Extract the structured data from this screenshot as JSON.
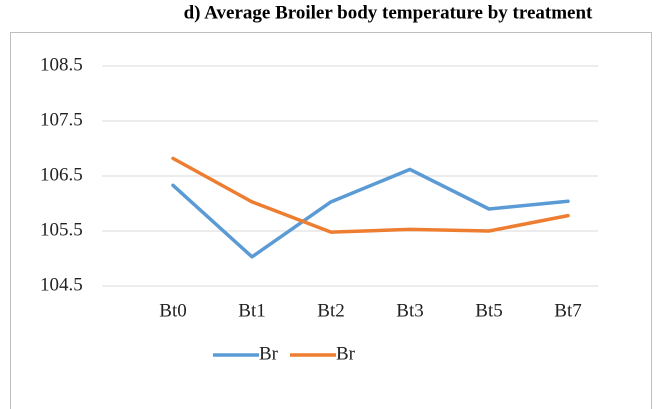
{
  "chart_data": {
    "type": "line",
    "title": "d)   Average Broiler body temperature by treatment",
    "categories": [
      "Bt0",
      "Bt1",
      "Bt2",
      "Bt3",
      "Bt5",
      "Bt7"
    ],
    "series": [
      {
        "name": "Br",
        "color": "#5b9bd5",
        "values": [
          106.33,
          105.03,
          106.03,
          106.62,
          105.9,
          106.04
        ]
      },
      {
        "name": "Br",
        "color": "#ed7d31",
        "values": [
          106.82,
          106.03,
          105.48,
          105.53,
          105.5,
          105.78
        ]
      }
    ],
    "ylim": [
      104.5,
      108.5
    ],
    "yticks": [
      104.5,
      105.5,
      106.5,
      107.5,
      108.5
    ],
    "grid": true,
    "legend": "bottom"
  }
}
